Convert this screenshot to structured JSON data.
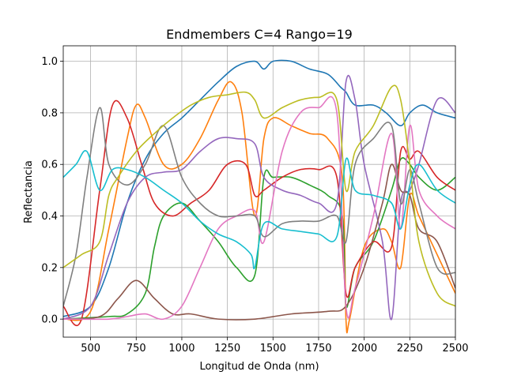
{
  "chart_data": {
    "type": "line",
    "title": "Endmembers C=4 Rango=19",
    "xlabel": "Longitud de Onda (nm)",
    "ylabel": "Reflectancia",
    "xlim": [
      350,
      2500
    ],
    "ylim": [
      -0.07,
      1.06
    ],
    "xticks": [
      500,
      750,
      1000,
      1250,
      1500,
      1750,
      2000,
      2250,
      2500
    ],
    "xtick_labels": [
      "500",
      "750",
      "1000",
      "1250",
      "1500",
      "1750",
      "2000",
      "2250",
      "2500"
    ],
    "yticks": [
      0.0,
      0.2,
      0.4,
      0.6,
      0.8,
      1.0
    ],
    "ytick_labels": [
      "0.0",
      "0.2",
      "0.4",
      "0.6",
      "0.8",
      "1.0"
    ],
    "grid": true,
    "series": [
      {
        "color": "#1f77b4",
        "points": [
          [
            350,
            0.01
          ],
          [
            500,
            0.05
          ],
          [
            600,
            0.2
          ],
          [
            700,
            0.45
          ],
          [
            800,
            0.62
          ],
          [
            900,
            0.72
          ],
          [
            1000,
            0.78
          ],
          [
            1100,
            0.85
          ],
          [
            1200,
            0.92
          ],
          [
            1300,
            0.98
          ],
          [
            1400,
            1.0
          ],
          [
            1450,
            0.97
          ],
          [
            1500,
            1.0
          ],
          [
            1600,
            1.0
          ],
          [
            1700,
            0.97
          ],
          [
            1800,
            0.95
          ],
          [
            1870,
            0.9
          ],
          [
            1900,
            0.88
          ],
          [
            1950,
            0.83
          ],
          [
            2050,
            0.83
          ],
          [
            2120,
            0.8
          ],
          [
            2200,
            0.75
          ],
          [
            2250,
            0.8
          ],
          [
            2320,
            0.83
          ],
          [
            2400,
            0.8
          ],
          [
            2500,
            0.78
          ]
        ]
      },
      {
        "color": "#ff7f0e",
        "points": [
          [
            350,
            0.0
          ],
          [
            500,
            0.03
          ],
          [
            600,
            0.35
          ],
          [
            700,
            0.7
          ],
          [
            750,
            0.83
          ],
          [
            800,
            0.78
          ],
          [
            900,
            0.6
          ],
          [
            1000,
            0.6
          ],
          [
            1100,
            0.7
          ],
          [
            1200,
            0.85
          ],
          [
            1270,
            0.92
          ],
          [
            1330,
            0.8
          ],
          [
            1400,
            0.4
          ],
          [
            1450,
            0.7
          ],
          [
            1500,
            0.78
          ],
          [
            1600,
            0.75
          ],
          [
            1700,
            0.72
          ],
          [
            1800,
            0.7
          ],
          [
            1880,
            0.55
          ],
          [
            1900,
            0.0
          ],
          [
            1920,
            0.0
          ],
          [
            2000,
            0.28
          ],
          [
            2100,
            0.35
          ],
          [
            2150,
            0.3
          ],
          [
            2200,
            0.2
          ],
          [
            2250,
            0.48
          ],
          [
            2300,
            0.4
          ],
          [
            2400,
            0.25
          ],
          [
            2500,
            0.1
          ]
        ]
      },
      {
        "color": "#2ca02c",
        "points": [
          [
            350,
            0.0
          ],
          [
            600,
            0.01
          ],
          [
            700,
            0.02
          ],
          [
            800,
            0.1
          ],
          [
            850,
            0.28
          ],
          [
            900,
            0.4
          ],
          [
            1000,
            0.45
          ],
          [
            1100,
            0.38
          ],
          [
            1200,
            0.3
          ],
          [
            1300,
            0.2
          ],
          [
            1400,
            0.17
          ],
          [
            1450,
            0.55
          ],
          [
            1500,
            0.55
          ],
          [
            1600,
            0.55
          ],
          [
            1700,
            0.52
          ],
          [
            1800,
            0.48
          ],
          [
            1880,
            0.4
          ],
          [
            1900,
            0.05
          ],
          [
            1950,
            0.2
          ],
          [
            2050,
            0.3
          ],
          [
            2150,
            0.5
          ],
          [
            2200,
            0.62
          ],
          [
            2250,
            0.6
          ],
          [
            2300,
            0.55
          ],
          [
            2400,
            0.5
          ],
          [
            2500,
            0.55
          ]
        ]
      },
      {
        "color": "#d62728",
        "points": [
          [
            350,
            0.05
          ],
          [
            450,
            0.0
          ],
          [
            550,
            0.5
          ],
          [
            620,
            0.83
          ],
          [
            700,
            0.78
          ],
          [
            780,
            0.6
          ],
          [
            850,
            0.45
          ],
          [
            950,
            0.4
          ],
          [
            1050,
            0.45
          ],
          [
            1150,
            0.5
          ],
          [
            1250,
            0.6
          ],
          [
            1350,
            0.6
          ],
          [
            1400,
            0.48
          ],
          [
            1450,
            0.5
          ],
          [
            1550,
            0.55
          ],
          [
            1650,
            0.58
          ],
          [
            1750,
            0.58
          ],
          [
            1850,
            0.55
          ],
          [
            1900,
            0.1
          ],
          [
            1950,
            0.2
          ],
          [
            2050,
            0.3
          ],
          [
            2150,
            0.28
          ],
          [
            2200,
            0.65
          ],
          [
            2250,
            0.62
          ],
          [
            2300,
            0.65
          ],
          [
            2400,
            0.55
          ],
          [
            2500,
            0.5
          ]
        ]
      },
      {
        "color": "#9467bd",
        "points": [
          [
            350,
            0.0
          ],
          [
            500,
            0.05
          ],
          [
            600,
            0.25
          ],
          [
            700,
            0.45
          ],
          [
            800,
            0.55
          ],
          [
            900,
            0.57
          ],
          [
            1000,
            0.58
          ],
          [
            1100,
            0.65
          ],
          [
            1200,
            0.7
          ],
          [
            1300,
            0.7
          ],
          [
            1400,
            0.68
          ],
          [
            1450,
            0.55
          ],
          [
            1550,
            0.5
          ],
          [
            1650,
            0.48
          ],
          [
            1750,
            0.45
          ],
          [
            1850,
            0.45
          ],
          [
            1900,
            0.92
          ],
          [
            1950,
            0.85
          ],
          [
            2000,
            0.6
          ],
          [
            2100,
            0.3
          ],
          [
            2150,
            0.0
          ],
          [
            2200,
            0.45
          ],
          [
            2250,
            0.5
          ],
          [
            2300,
            0.6
          ],
          [
            2400,
            0.85
          ],
          [
            2500,
            0.8
          ]
        ]
      },
      {
        "color": "#8c564b",
        "points": [
          [
            350,
            0.0
          ],
          [
            550,
            0.01
          ],
          [
            650,
            0.08
          ],
          [
            750,
            0.15
          ],
          [
            850,
            0.08
          ],
          [
            950,
            0.02
          ],
          [
            1050,
            0.02
          ],
          [
            1200,
            0.0
          ],
          [
            1400,
            0.0
          ],
          [
            1600,
            0.02
          ],
          [
            1800,
            0.03
          ],
          [
            1900,
            0.05
          ],
          [
            2000,
            0.2
          ],
          [
            2100,
            0.45
          ],
          [
            2150,
            0.6
          ],
          [
            2200,
            0.5
          ],
          [
            2250,
            0.48
          ],
          [
            2300,
            0.35
          ],
          [
            2400,
            0.3
          ],
          [
            2500,
            0.12
          ]
        ]
      },
      {
        "color": "#e377c2",
        "points": [
          [
            350,
            0.0
          ],
          [
            600,
            0.0
          ],
          [
            700,
            0.01
          ],
          [
            800,
            0.02
          ],
          [
            900,
            0.0
          ],
          [
            1000,
            0.05
          ],
          [
            1100,
            0.2
          ],
          [
            1200,
            0.35
          ],
          [
            1300,
            0.4
          ],
          [
            1400,
            0.42
          ],
          [
            1450,
            0.3
          ],
          [
            1550,
            0.65
          ],
          [
            1650,
            0.8
          ],
          [
            1750,
            0.82
          ],
          [
            1850,
            0.8
          ],
          [
            1900,
            0.05
          ],
          [
            1950,
            0.12
          ],
          [
            2050,
            0.4
          ],
          [
            2150,
            0.72
          ],
          [
            2200,
            0.35
          ],
          [
            2250,
            0.75
          ],
          [
            2300,
            0.5
          ],
          [
            2400,
            0.4
          ],
          [
            2500,
            0.35
          ]
        ]
      },
      {
        "color": "#7f7f7f",
        "points": [
          [
            350,
            0.05
          ],
          [
            420,
            0.25
          ],
          [
            480,
            0.55
          ],
          [
            550,
            0.82
          ],
          [
            600,
            0.6
          ],
          [
            700,
            0.52
          ],
          [
            800,
            0.6
          ],
          [
            900,
            0.75
          ],
          [
            1000,
            0.55
          ],
          [
            1100,
            0.45
          ],
          [
            1200,
            0.4
          ],
          [
            1300,
            0.4
          ],
          [
            1400,
            0.4
          ],
          [
            1450,
            0.32
          ],
          [
            1550,
            0.37
          ],
          [
            1650,
            0.38
          ],
          [
            1750,
            0.38
          ],
          [
            1850,
            0.4
          ],
          [
            1900,
            0.3
          ],
          [
            1950,
            0.6
          ],
          [
            2050,
            0.7
          ],
          [
            2150,
            0.75
          ],
          [
            2200,
            0.45
          ],
          [
            2250,
            0.58
          ],
          [
            2300,
            0.45
          ],
          [
            2400,
            0.2
          ],
          [
            2500,
            0.18
          ]
        ]
      },
      {
        "color": "#bcbd22",
        "points": [
          [
            350,
            0.2
          ],
          [
            450,
            0.25
          ],
          [
            550,
            0.3
          ],
          [
            600,
            0.48
          ],
          [
            650,
            0.55
          ],
          [
            750,
            0.65
          ],
          [
            850,
            0.72
          ],
          [
            950,
            0.78
          ],
          [
            1050,
            0.83
          ],
          [
            1150,
            0.86
          ],
          [
            1250,
            0.87
          ],
          [
            1350,
            0.88
          ],
          [
            1400,
            0.85
          ],
          [
            1450,
            0.78
          ],
          [
            1550,
            0.82
          ],
          [
            1650,
            0.85
          ],
          [
            1750,
            0.86
          ],
          [
            1850,
            0.85
          ],
          [
            1900,
            0.5
          ],
          [
            1950,
            0.65
          ],
          [
            2050,
            0.75
          ],
          [
            2150,
            0.9
          ],
          [
            2200,
            0.85
          ],
          [
            2250,
            0.6
          ],
          [
            2300,
            0.3
          ],
          [
            2400,
            0.1
          ],
          [
            2500,
            0.05
          ]
        ]
      },
      {
        "color": "#17becf",
        "points": [
          [
            350,
            0.55
          ],
          [
            420,
            0.6
          ],
          [
            480,
            0.65
          ],
          [
            550,
            0.5
          ],
          [
            620,
            0.58
          ],
          [
            700,
            0.58
          ],
          [
            800,
            0.55
          ],
          [
            900,
            0.5
          ],
          [
            1000,
            0.45
          ],
          [
            1100,
            0.38
          ],
          [
            1200,
            0.33
          ],
          [
            1300,
            0.3
          ],
          [
            1380,
            0.25
          ],
          [
            1400,
            0.2
          ],
          [
            1450,
            0.37
          ],
          [
            1550,
            0.35
          ],
          [
            1650,
            0.34
          ],
          [
            1750,
            0.33
          ],
          [
            1850,
            0.32
          ],
          [
            1900,
            0.62
          ],
          [
            1950,
            0.5
          ],
          [
            2050,
            0.48
          ],
          [
            2150,
            0.45
          ],
          [
            2200,
            0.35
          ],
          [
            2250,
            0.52
          ],
          [
            2300,
            0.6
          ],
          [
            2400,
            0.5
          ],
          [
            2500,
            0.45
          ]
        ]
      }
    ]
  }
}
